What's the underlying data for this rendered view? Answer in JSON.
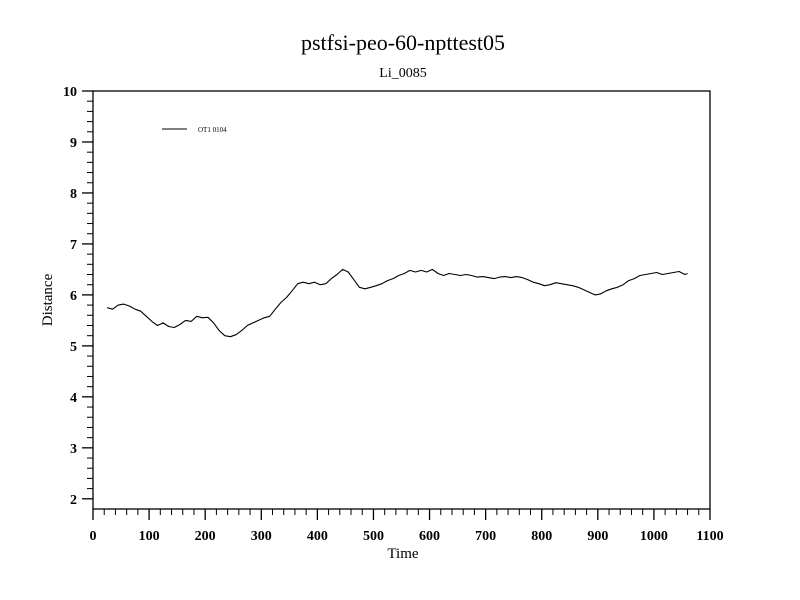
{
  "chart_data": {
    "type": "line",
    "title": "pstfsi-peo-60-npttest05",
    "subtitle": "Li_0085",
    "xlabel": "Time",
    "ylabel": "Distance",
    "xlim": [
      0,
      1100
    ],
    "ylim": [
      1.8,
      10
    ],
    "x_ticks": [
      0,
      100,
      200,
      300,
      400,
      500,
      600,
      700,
      800,
      900,
      1000,
      1100
    ],
    "y_ticks": [
      2,
      3,
      4,
      5,
      6,
      7,
      8,
      9,
      10
    ],
    "x_minor_step": 20,
    "y_minor_step": 0.2,
    "grid": false,
    "legend_position": "top-left",
    "series": [
      {
        "name": "OT1 0104",
        "color": "#000000",
        "x": [
          25,
          35,
          45,
          55,
          65,
          75,
          85,
          95,
          105,
          115,
          125,
          135,
          145,
          155,
          165,
          175,
          185,
          195,
          205,
          215,
          225,
          235,
          245,
          255,
          265,
          275,
          285,
          295,
          305,
          315,
          325,
          335,
          345,
          355,
          365,
          375,
          385,
          395,
          405,
          415,
          425,
          435,
          445,
          455,
          465,
          475,
          485,
          495,
          505,
          515,
          525,
          535,
          545,
          555,
          565,
          575,
          585,
          595,
          605,
          615,
          625,
          635,
          645,
          655,
          665,
          675,
          685,
          695,
          705,
          715,
          725,
          735,
          745,
          755,
          765,
          775,
          785,
          795,
          805,
          815,
          825,
          835,
          845,
          855,
          865,
          875,
          885,
          895,
          905,
          915,
          925,
          935,
          945,
          955,
          965,
          975,
          985,
          995,
          1005,
          1015,
          1025,
          1035,
          1045,
          1055,
          1060
        ],
        "y": [
          5.75,
          5.72,
          5.8,
          5.82,
          5.78,
          5.72,
          5.68,
          5.58,
          5.48,
          5.4,
          5.45,
          5.38,
          5.36,
          5.42,
          5.5,
          5.48,
          5.58,
          5.55,
          5.56,
          5.45,
          5.3,
          5.2,
          5.18,
          5.22,
          5.3,
          5.4,
          5.45,
          5.5,
          5.55,
          5.58,
          5.72,
          5.85,
          5.95,
          6.08,
          6.22,
          6.25,
          6.22,
          6.25,
          6.2,
          6.22,
          6.32,
          6.4,
          6.5,
          6.45,
          6.3,
          6.15,
          6.12,
          6.15,
          6.18,
          6.22,
          6.28,
          6.32,
          6.38,
          6.42,
          6.48,
          6.45,
          6.48,
          6.45,
          6.5,
          6.42,
          6.38,
          6.42,
          6.4,
          6.38,
          6.4,
          6.38,
          6.35,
          6.36,
          6.34,
          6.32,
          6.35,
          6.36,
          6.34,
          6.36,
          6.34,
          6.3,
          6.25,
          6.22,
          6.18,
          6.2,
          6.24,
          6.22,
          6.2,
          6.18,
          6.15,
          6.1,
          6.05,
          6.0,
          6.02,
          6.08,
          6.12,
          6.15,
          6.2,
          6.28,
          6.32,
          6.38,
          6.4,
          6.42,
          6.44,
          6.4,
          6.42,
          6.44,
          6.46,
          6.4,
          6.42
        ]
      }
    ]
  }
}
